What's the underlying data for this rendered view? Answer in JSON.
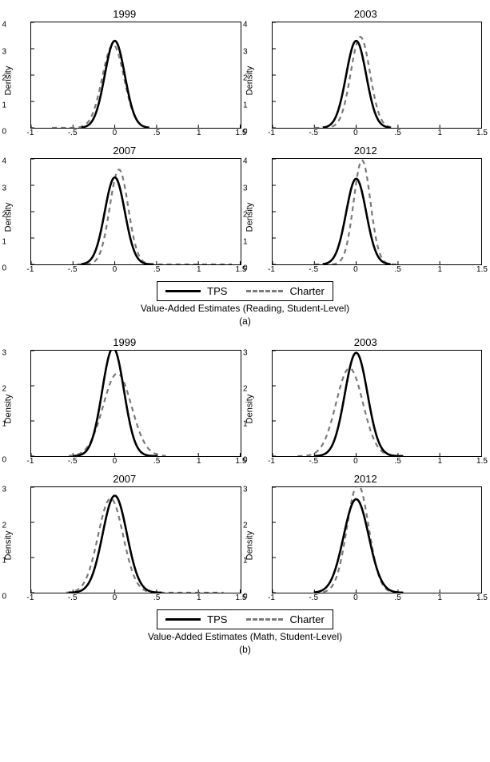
{
  "colors": {
    "tps": "#000000",
    "charter": "#7a7a7a",
    "border": "#000000",
    "background": "#ffffff"
  },
  "stroke": {
    "tps_width": 2.6,
    "charter_width": 2.2,
    "charter_dash": "6,5"
  },
  "xaxis": {
    "lim": [
      -1,
      1.5
    ],
    "ticks": [
      -1,
      -0.5,
      0,
      0.5,
      1,
      1.5
    ],
    "labels": [
      "-1",
      "-.5",
      "0",
      ".5",
      "1",
      "1.5"
    ]
  },
  "panels_a": {
    "ylabel": "Density",
    "ylim": [
      0,
      4
    ],
    "yticks": [
      0,
      1,
      2,
      3,
      4
    ],
    "yticklabels": [
      "0",
      "1",
      "2",
      "3",
      "4"
    ],
    "charts": [
      {
        "title": "1999",
        "tps": {
          "mean": 0.0,
          "sd": 0.12,
          "peak": 3.3,
          "xmin": -0.4,
          "xmax": 0.4
        },
        "charter": {
          "mean": -0.02,
          "sd": 0.13,
          "peak": 3.15,
          "xmin": -0.75,
          "xmax": 0.4
        }
      },
      {
        "title": "2003",
        "tps": {
          "mean": 0.0,
          "sd": 0.12,
          "peak": 3.3,
          "xmin": -0.4,
          "xmax": 0.4
        },
        "charter": {
          "mean": 0.05,
          "sd": 0.115,
          "peak": 3.45,
          "xmin": -0.5,
          "xmax": 0.45
        }
      },
      {
        "title": "2007",
        "tps": {
          "mean": 0.0,
          "sd": 0.12,
          "peak": 3.3,
          "xmin": -0.4,
          "xmax": 0.45
        },
        "charter": {
          "mean": 0.05,
          "sd": 0.11,
          "peak": 3.6,
          "xmin": -0.45,
          "xmax": 1.4
        }
      },
      {
        "title": "2012",
        "tps": {
          "mean": 0.0,
          "sd": 0.12,
          "peak": 3.25,
          "xmin": -0.4,
          "xmax": 0.4
        },
        "charter": {
          "mean": 0.07,
          "sd": 0.1,
          "peak": 3.95,
          "xmin": -0.5,
          "xmax": 0.5
        }
      }
    ]
  },
  "panels_b": {
    "ylabel": "Density",
    "ylim": [
      0,
      3
    ],
    "yticks": [
      0,
      1,
      2,
      3
    ],
    "yticklabels": [
      "0",
      "1",
      "2",
      "3"
    ],
    "charts": [
      {
        "title": "1999",
        "tps": {
          "mean": -0.02,
          "sd": 0.13,
          "peak": 3.08,
          "xmin": -0.5,
          "xmax": 0.5
        },
        "charter": {
          "mean": 0.03,
          "sd": 0.17,
          "peak": 2.35,
          "xmin": -0.55,
          "xmax": 0.6
        }
      },
      {
        "title": "2003",
        "tps": {
          "mean": 0.0,
          "sd": 0.135,
          "peak": 2.94,
          "xmin": -0.5,
          "xmax": 0.55
        },
        "charter": {
          "mean": -0.08,
          "sd": 0.16,
          "peak": 2.5,
          "xmin": -0.7,
          "xmax": 0.55
        }
      },
      {
        "title": "2007",
        "tps": {
          "mean": 0.0,
          "sd": 0.145,
          "peak": 2.76,
          "xmin": -0.55,
          "xmax": 0.55
        },
        "charter": {
          "mean": -0.05,
          "sd": 0.15,
          "peak": 2.68,
          "xmin": -0.58,
          "xmax": 1.3
        }
      },
      {
        "title": "2012",
        "tps": {
          "mean": 0.0,
          "sd": 0.15,
          "peak": 2.66,
          "xmin": -0.5,
          "xmax": 0.55
        },
        "charter": {
          "mean": 0.02,
          "sd": 0.13,
          "peak": 3.08,
          "xmin": -0.5,
          "xmax": 0.55
        }
      }
    ]
  },
  "legend": {
    "tps": "TPS",
    "charter": "Charter"
  },
  "captions": {
    "a": "Value-Added Estimates (Reading, Student-Level)",
    "a_sub": "(a)",
    "b": "Value-Added Estimates (Math, Student-Level)",
    "b_sub": "(b)"
  }
}
